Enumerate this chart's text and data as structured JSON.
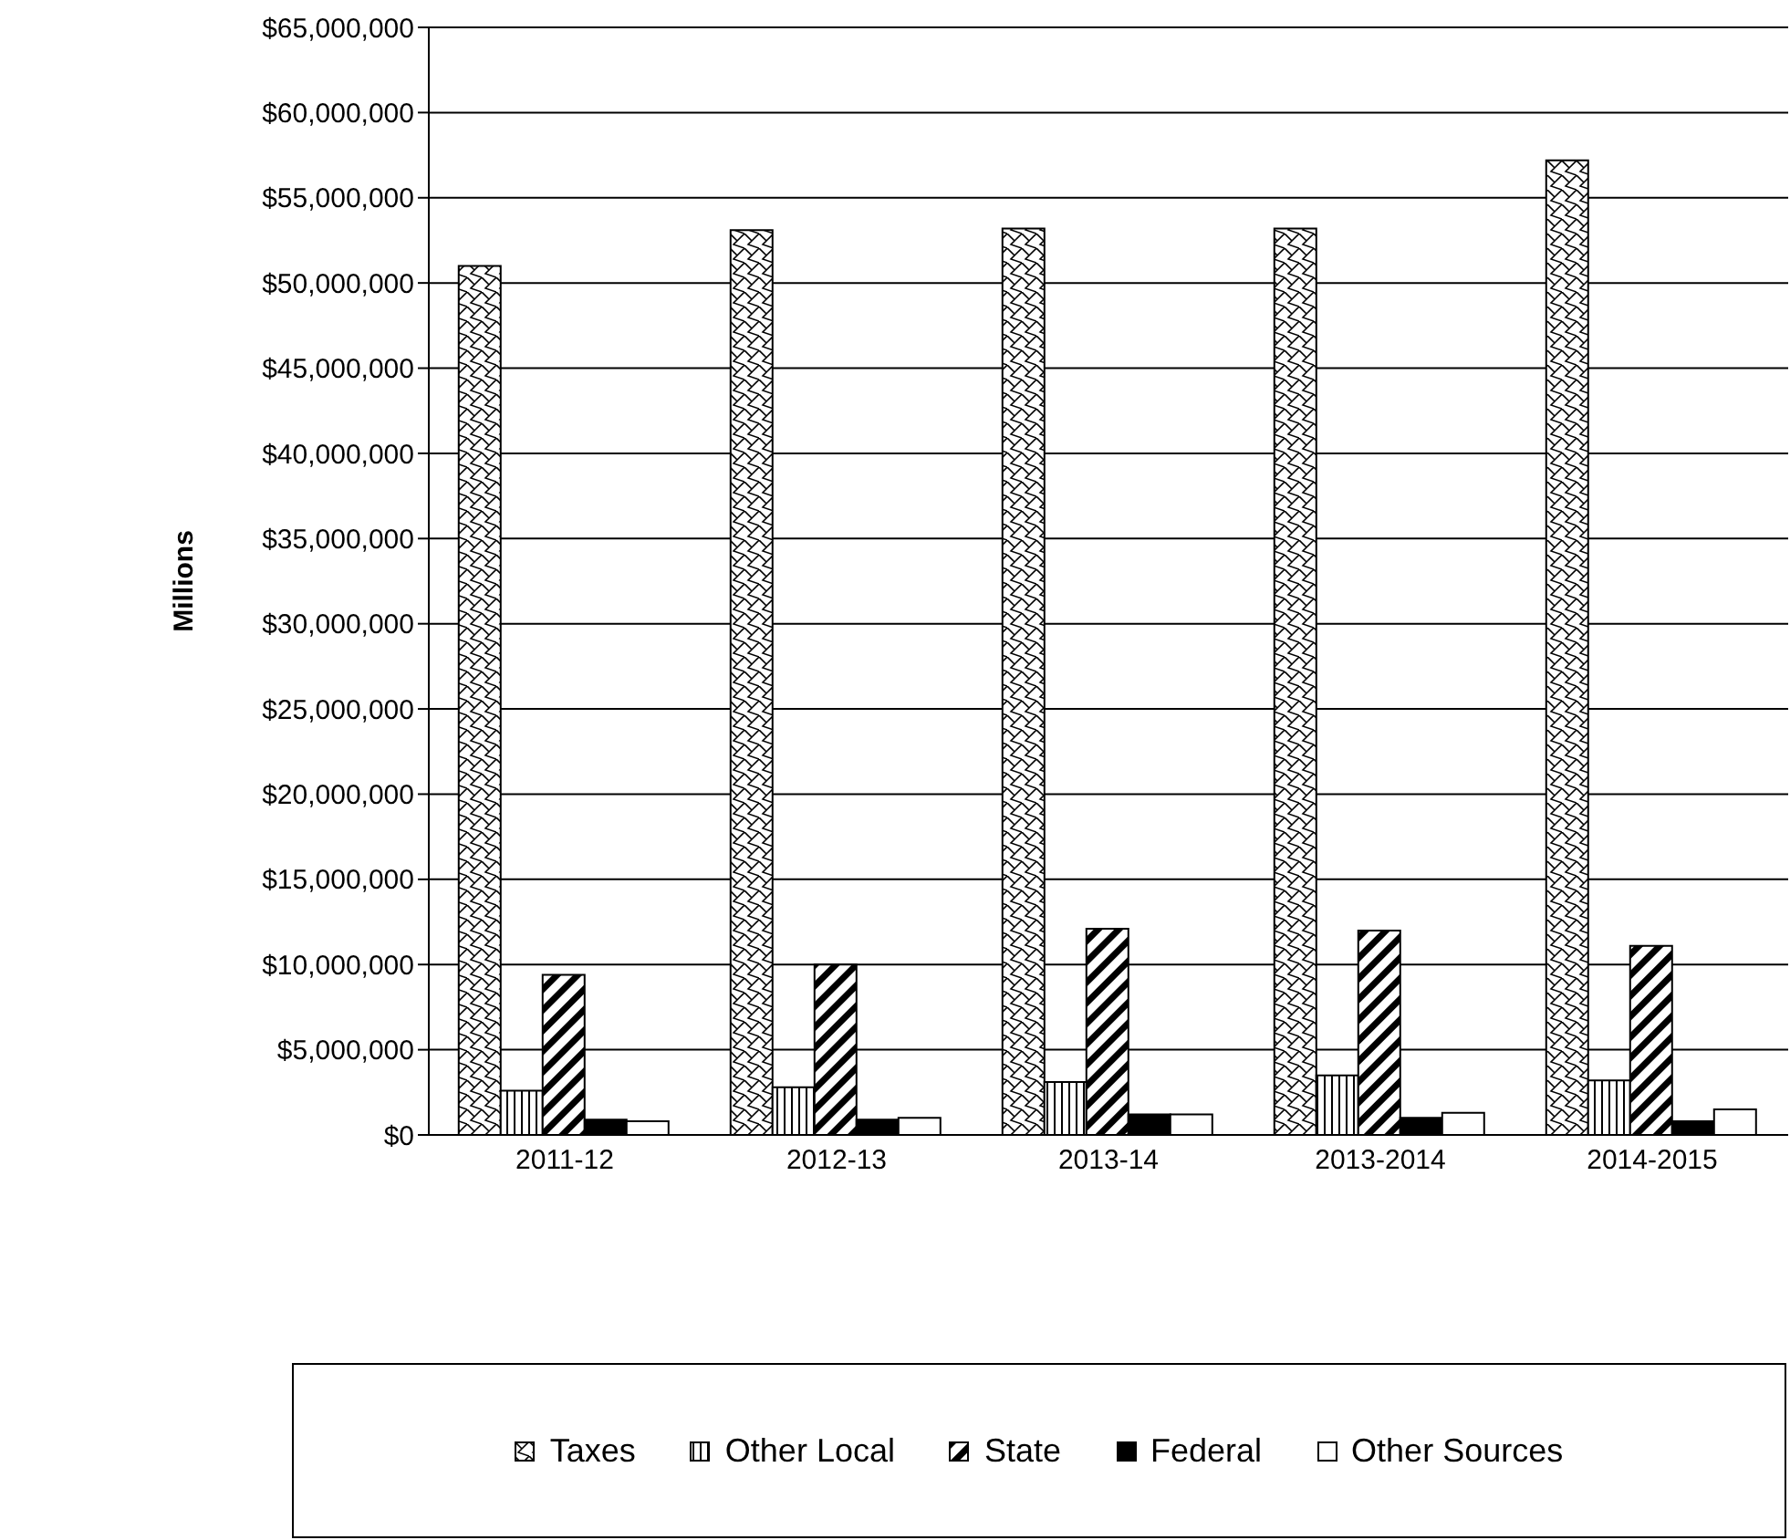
{
  "chart_data": {
    "type": "bar",
    "ylabel": "Millions",
    "categories": [
      "2011-12",
      "2012-13",
      "2013-14",
      "2013-2014",
      "2014-2015"
    ],
    "series": [
      {
        "name": "Taxes",
        "color": "#000000",
        "values": [
          51000000,
          53100000,
          53200000,
          53200000,
          57200000
        ]
      },
      {
        "name": "Other Local",
        "color": "#000000",
        "values": [
          2600000,
          2800000,
          3100000,
          3500000,
          3200000
        ]
      },
      {
        "name": "State",
        "color": "#000000",
        "values": [
          9400000,
          10000000,
          12100000,
          12000000,
          11100000
        ]
      },
      {
        "name": "Federal",
        "color": "#000000",
        "values": [
          900000,
          900000,
          1200000,
          1000000,
          800000
        ]
      },
      {
        "name": "Other Sources",
        "color": "#ffffff",
        "values": [
          800000,
          1000000,
          1200000,
          1300000,
          1500000
        ]
      }
    ],
    "ylim": [
      0,
      65000000
    ],
    "yticks": [
      {
        "value": 0,
        "label": "$0"
      },
      {
        "value": 5000000,
        "label": "$5,000,000"
      },
      {
        "value": 10000000,
        "label": "$10,000,000"
      },
      {
        "value": 15000000,
        "label": "$15,000,000"
      },
      {
        "value": 20000000,
        "label": "$20,000,000"
      },
      {
        "value": 25000000,
        "label": "$25,000,000"
      },
      {
        "value": 30000000,
        "label": "$30,000,000"
      },
      {
        "value": 35000000,
        "label": "$35,000,000"
      },
      {
        "value": 40000000,
        "label": "$40,000,000"
      },
      {
        "value": 45000000,
        "label": "$45,000,000"
      },
      {
        "value": 50000000,
        "label": "$50,000,000"
      },
      {
        "value": 55000000,
        "label": "$55,000,000"
      },
      {
        "value": 60000000,
        "label": "$60,000,000"
      },
      {
        "value": 65000000,
        "label": "$65,000,000"
      }
    ],
    "grid": "y",
    "legend": "bottom"
  }
}
